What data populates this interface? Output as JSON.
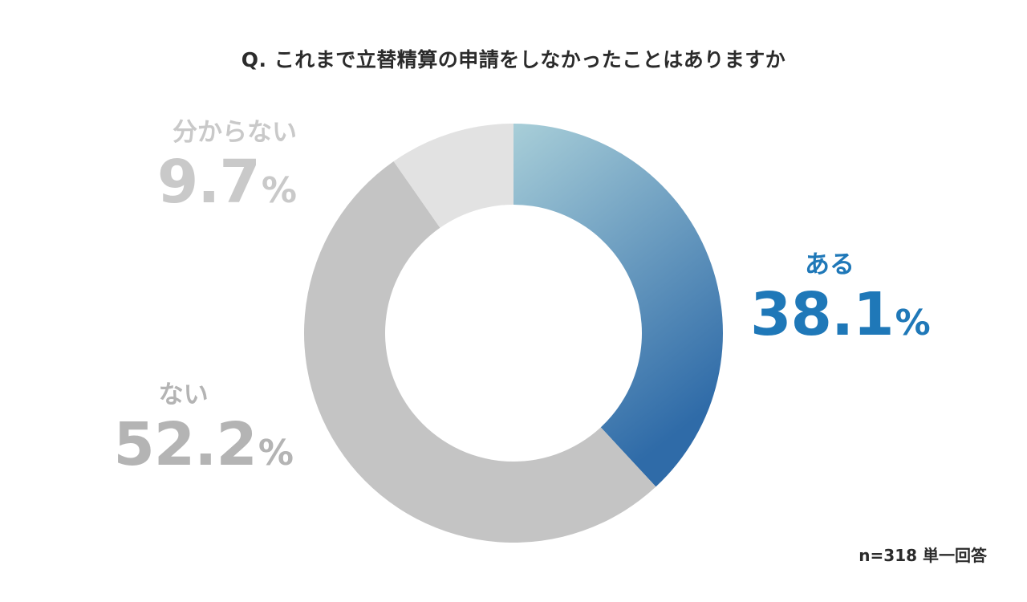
{
  "title": "Q. これまで立替精算の申請をしなかったことはありますか",
  "footnote": "n=318 単一回答",
  "chart_data": {
    "type": "pie",
    "subtype": "donut",
    "title": "Q. これまで立替精算の申請をしなかったことはありますか",
    "slices": [
      {
        "key": "aru",
        "label": "ある",
        "value": 38.1,
        "value_text": "38.1",
        "unit": "%",
        "color_start": "#a8ced8",
        "color_end": "#2f6ba8",
        "label_color": "#1f78b8"
      },
      {
        "key": "nai",
        "label": "ない",
        "value": 52.2,
        "value_text": "52.2",
        "unit": "%",
        "color": "#c4c4c4",
        "label_color": "#b4b4b4"
      },
      {
        "key": "wakaranai",
        "label": "分からない",
        "value": 9.7,
        "value_text": "9.7",
        "unit": "%",
        "color": "#e2e2e2",
        "label_color": "#c9c9c9"
      }
    ],
    "start_angle": "12 o'clock",
    "direction": "clockwise",
    "sample_note": "n=318 単一回答"
  }
}
